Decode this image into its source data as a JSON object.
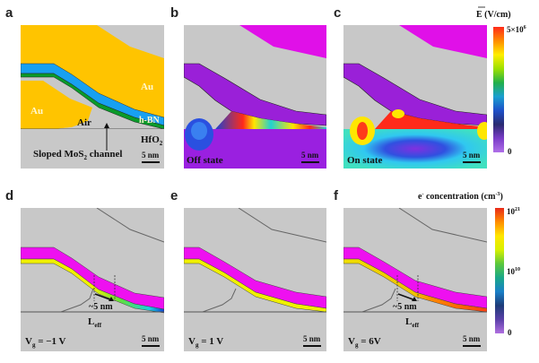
{
  "panel_labels": {
    "a": "a",
    "b": "b",
    "c": "c",
    "d": "d",
    "e": "e",
    "f": "f"
  },
  "panel_a": {
    "au_left": "Au",
    "au_right": "Au",
    "air": "Air",
    "hbn": "h-BN",
    "hfo2": "HfO",
    "hfo2_sub": "2",
    "channel_pre": "Sloped MoS",
    "channel_sub": "2",
    "channel_post": " channel",
    "scale": "5 nm"
  },
  "panel_b": {
    "state": "Off state",
    "scale": "5 nm"
  },
  "panel_c": {
    "state": "On state",
    "scale": "5 nm"
  },
  "efield_colorbar": {
    "title": "E (V/cm)",
    "max_label": "5×10",
    "max_exp": "6",
    "min_label": "0",
    "colors": [
      "#ff2a1a",
      "#ff8c00",
      "#ffee00",
      "#9de000",
      "#22b04a",
      "#1a9fd0",
      "#1e50c8",
      "#2a2a70",
      "#7a3cc8",
      "#b070e8"
    ]
  },
  "panel_d": {
    "vg": "V",
    "vg_sub": "g",
    "vg_val": " = −1 V",
    "len": "~5 nm",
    "leff": "L",
    "leff_sub": "eff",
    "scale": "5 nm"
  },
  "panel_e": {
    "vg": "V",
    "vg_sub": "g",
    "vg_val": " = 1 V",
    "scale": "5 nm"
  },
  "panel_f": {
    "vg": "V",
    "vg_sub": "g",
    "vg_val": " = 6V",
    "len": "~5 nm",
    "leff": "L",
    "leff_sub": "eff",
    "scale": "5 nm"
  },
  "conc_colorbar": {
    "title_pre": "e",
    "title_sup": "-",
    "title_post": " concentration (cm",
    "title_exp": "-3",
    "title_close": ")",
    "max_label": "10",
    "max_exp": "21",
    "mid_label": "10",
    "mid_exp": "10",
    "min_label": "0",
    "colors": [
      "#e82a1a",
      "#ff8c00",
      "#ffe600",
      "#d8f000",
      "#5cc83c",
      "#1aa888",
      "#1a80c8",
      "#1e3c78",
      "#5a40a8",
      "#b070e0"
    ]
  },
  "colors": {
    "gold": "#ffc400",
    "gray": "#c8c8c8",
    "hbn_blue": "#18a0f0",
    "mos2_green": "#0a9a2a",
    "magenta": "#ee10f0",
    "yellow": "#f0f000"
  }
}
